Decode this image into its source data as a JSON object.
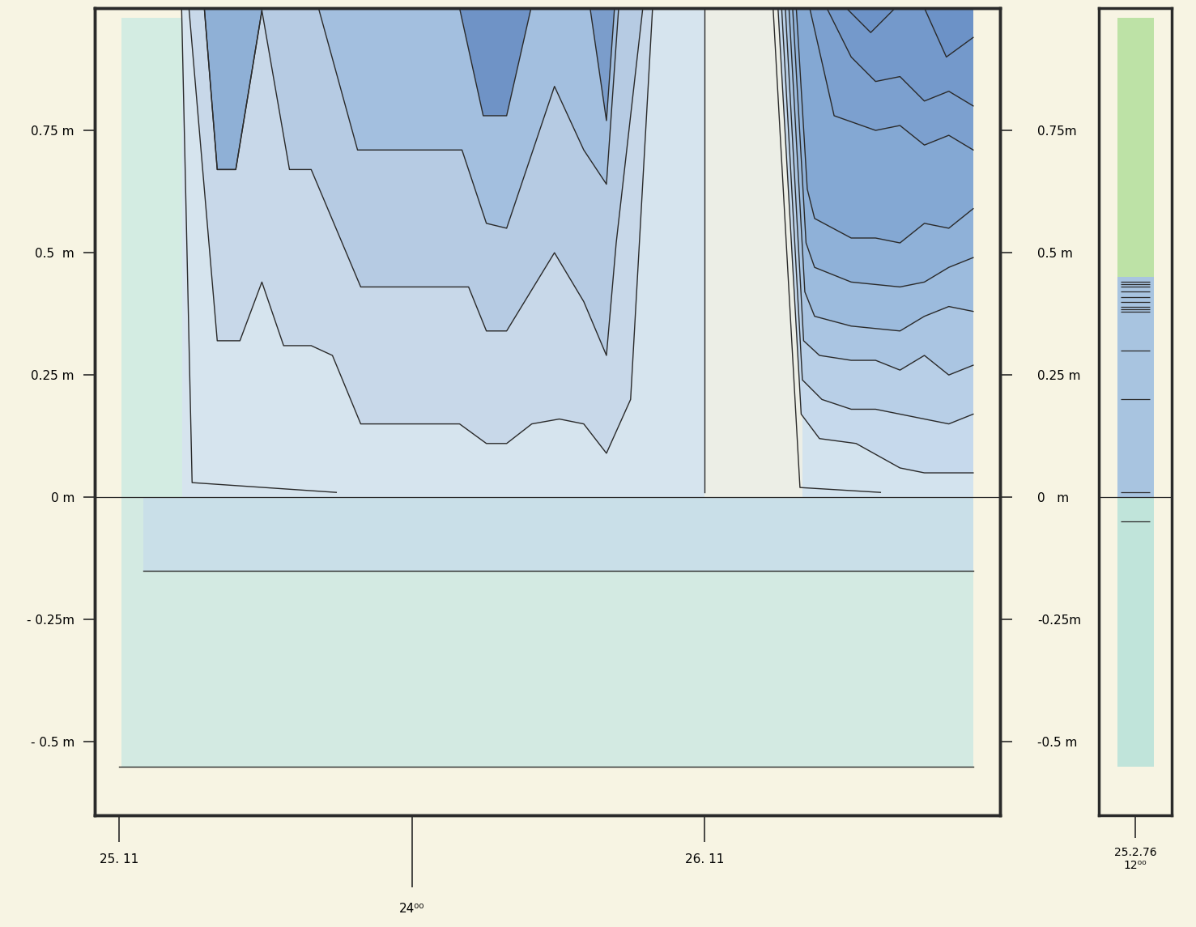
{
  "chart_data": {
    "type": "contour",
    "xlim": [
      -1.0,
      36.1
    ],
    "ylim": [
      -0.65,
      1.0
    ],
    "xticks": [
      {
        "value": 0,
        "label": "25. 11"
      },
      {
        "value": 12,
        "label": "24⁰⁰"
      },
      {
        "value": 24,
        "label": "26. 11"
      }
    ],
    "hour_ticks": [
      1,
      2,
      3,
      4,
      5,
      6,
      7,
      8,
      9,
      10,
      11,
      12,
      13,
      14,
      15,
      16,
      17,
      18,
      19,
      20,
      21,
      22,
      23,
      24,
      25,
      26,
      27,
      28,
      29,
      30,
      31,
      32,
      33,
      34,
      35
    ],
    "yticks": [
      {
        "value": -0.5,
        "label": "- 0.5 m"
      },
      {
        "value": -0.25,
        "label": "- 0.25m"
      },
      {
        "value": 0,
        "label": "0 m"
      },
      {
        "value": 0.25,
        "label": "0.25 m"
      },
      {
        "value": 0.5,
        "label": "0.5  m"
      },
      {
        "value": 0.75,
        "label": "0.75 m"
      }
    ],
    "y2lim": [
      -0.65,
      1.0
    ],
    "y2ticks": [
      {
        "value": -0.5,
        "label": "-0.5 m"
      },
      {
        "value": -0.25,
        "label": "-0.25m"
      },
      {
        "value": 0,
        "label": "0   m"
      },
      {
        "value": 0.25,
        "label": "0.25 m"
      },
      {
        "value": 0.5,
        "label": "0.5 m"
      },
      {
        "value": 0.75,
        "label": "0.75m"
      }
    ],
    "areas": [
      {
        "x": [
          0.1,
          35.0
        ],
        "y": [
          -0.55,
          0.0
        ],
        "color": "#d3eae2"
      },
      {
        "x": [
          1.0,
          35.0
        ],
        "y": [
          -0.15,
          0.0
        ],
        "color": "#c9dfe8"
      },
      {
        "x": [
          0.1,
          2.6
        ],
        "y": [
          0.0,
          0.98
        ],
        "color": "#d3ece2"
      },
      {
        "x": [
          2.6,
          24.0
        ],
        "y": [
          0.0,
          1.0
        ],
        "color": "#d6e4ee"
      },
      {
        "x": [
          24.0,
          28.0
        ],
        "y": [
          0.0,
          1.0
        ],
        "color": "#eceee6"
      },
      {
        "x": [
          28.0,
          35.0
        ],
        "y": [
          0.0,
          1.0
        ],
        "color": "#d3e3ee"
      }
    ],
    "series": [
      {
        "type": "area",
        "color": "#c8d8e9",
        "x": [
          2.86,
          4.02,
          4.95,
          5.85,
          6.74,
          7.87,
          8.74,
          9.9,
          13.95,
          15.05,
          15.88,
          16.91,
          18.04,
          19.04,
          19.97,
          20.96,
          21.86
        ],
        "y": [
          1.0,
          0.32,
          0.32,
          0.44,
          0.31,
          0.31,
          0.29,
          0.15,
          0.15,
          0.11,
          0.11,
          0.15,
          0.16,
          0.15,
          0.09,
          0.2,
          1.0
        ]
      },
      {
        "type": "area",
        "color": "#b6cbe3",
        "x": [
          3.49,
          4.02,
          4.78,
          5.85,
          6.98,
          7.87,
          9.9,
          14.32,
          15.05,
          15.88,
          17.84,
          19.04,
          19.97,
          20.37,
          21.46
        ],
        "y": [
          1.0,
          0.67,
          0.67,
          0.995,
          0.67,
          0.67,
          0.43,
          0.43,
          0.34,
          0.34,
          0.5,
          0.4,
          0.29,
          0.52,
          1.0
        ]
      },
      {
        "type": "area",
        "color": "#8fb0d6",
        "x": [
          3.49,
          4.02,
          4.78,
          5.85
        ],
        "y": [
          1.0,
          0.67,
          0.67,
          0.995
        ]
      },
      {
        "type": "area",
        "color": "#a3bfdf",
        "x": [
          8.17,
          9.77,
          14.05,
          15.05,
          15.88,
          17.84,
          19.04,
          19.97,
          20.47
        ],
        "y": [
          1.0,
          0.71,
          0.71,
          0.56,
          0.55,
          0.84,
          0.71,
          0.64,
          1.0
        ]
      },
      {
        "type": "area",
        "color": "#6f93c6",
        "x": [
          13.95,
          14.92,
          15.88,
          16.88
        ],
        "y": [
          1.0,
          0.78,
          0.78,
          1.0
        ]
      },
      {
        "type": "area",
        "color": "#7b9dcb",
        "x": [
          19.3,
          19.97,
          20.3
        ],
        "y": [
          1.0,
          0.77,
          1.0
        ]
      },
      {
        "type": "line",
        "color": "#2a2a2a",
        "x": [
          2.56,
          2.99,
          8.9
        ],
        "y": [
          1.0,
          0.03,
          0.01
        ]
      },
      {
        "type": "line",
        "color": "#2a2a2a",
        "x": [
          24,
          24
        ],
        "y": [
          1.0,
          0.01
        ]
      },
      {
        "type": "line",
        "color": "#2a2a2a",
        "x": [
          1.0,
          35.0
        ],
        "y": [
          -0.15,
          -0.15
        ]
      },
      {
        "type": "line",
        "color": "#2a2a2a",
        "x": [
          0.0,
          35.0
        ],
        "y": [
          -0.55,
          -0.55
        ]
      },
      {
        "type": "line",
        "color": "#2a2a2a",
        "x": [
          26.8,
          27.9,
          31.2
        ],
        "y": [
          1.0,
          0.02,
          0.01
        ]
      },
      {
        "type": "area",
        "color": "#c6d9ec",
        "x": [
          27.0,
          27.95,
          28.7,
          30.2,
          32.0,
          33.0,
          35.0
        ],
        "y": [
          1.0,
          0.17,
          0.12,
          0.11,
          0.06,
          0.05,
          0.05
        ]
      },
      {
        "type": "area",
        "color": "#b8cfe7",
        "x": [
          27.15,
          28.0,
          28.8,
          30.0,
          31.0,
          32.0,
          33.0,
          34.0,
          35.0
        ],
        "y": [
          1.0,
          0.24,
          0.2,
          0.18,
          0.18,
          0.17,
          0.16,
          0.15,
          0.17
        ]
      },
      {
        "type": "area",
        "color": "#aac5e2",
        "x": [
          27.3,
          28.05,
          28.7,
          30.0,
          31.0,
          32.0,
          33.0,
          34.0,
          35.0
        ],
        "y": [
          1.0,
          0.32,
          0.29,
          0.28,
          0.28,
          0.26,
          0.29,
          0.25,
          0.27
        ]
      },
      {
        "type": "area",
        "color": "#9cbbdd",
        "x": [
          27.45,
          28.1,
          28.5,
          30.0,
          32.0,
          33.0,
          34.0,
          35.0
        ],
        "y": [
          1.0,
          0.42,
          0.37,
          0.35,
          0.34,
          0.37,
          0.39,
          0.38
        ]
      },
      {
        "type": "area",
        "color": "#8fb1d8",
        "x": [
          27.6,
          28.15,
          28.5,
          30.0,
          32.0,
          33.0,
          34.0,
          35.0
        ],
        "y": [
          1.0,
          0.52,
          0.47,
          0.44,
          0.43,
          0.44,
          0.47,
          0.49
        ]
      },
      {
        "type": "area",
        "color": "#84a8d3",
        "x": [
          27.75,
          28.2,
          28.5,
          30.0,
          31.0,
          32.0,
          33.0,
          34.0,
          35.0
        ],
        "y": [
          1.0,
          0.63,
          0.57,
          0.53,
          0.53,
          0.52,
          0.56,
          0.55,
          0.59
        ]
      },
      {
        "type": "area",
        "color": "#7ca0cf",
        "x": [
          28.3,
          29.3,
          31.0,
          32.0,
          33.0,
          34.0,
          35.0
        ],
        "y": [
          1.0,
          0.78,
          0.75,
          0.76,
          0.72,
          0.74,
          0.71
        ]
      },
      {
        "type": "area",
        "color": "#7499cb",
        "x": [
          29.0,
          30.0,
          31.0,
          32.0,
          33.0,
          34.0,
          35.0
        ],
        "y": [
          1.0,
          0.9,
          0.85,
          0.86,
          0.81,
          0.83,
          0.8
        ]
      },
      {
        "type": "area",
        "color": "#6c92c7",
        "x": [
          29.8,
          30.8,
          31.8
        ],
        "y": [
          1.0,
          0.95,
          1.0
        ]
      },
      {
        "type": "area",
        "color": "#6c92c7",
        "x": [
          33.0,
          33.9,
          35.0
        ],
        "y": [
          1.0,
          0.9,
          0.94
        ]
      }
    ],
    "profile": {
      "label": "25.2.76\n12⁰⁰",
      "segments": [
        {
          "top": 0.98,
          "bottom": 0.45,
          "color": "#bde2a6"
        },
        {
          "top": 0.45,
          "bottom": 0.0,
          "color": "#a8c4e0"
        },
        {
          "top": 0.0,
          "bottom": -0.55,
          "color": "#c0e4da"
        }
      ],
      "marks": [
        0.44,
        0.435,
        0.43,
        0.42,
        0.41,
        0.4,
        0.39,
        0.385,
        0.38,
        0.3,
        0.2,
        0.01,
        -0.05
      ]
    }
  }
}
